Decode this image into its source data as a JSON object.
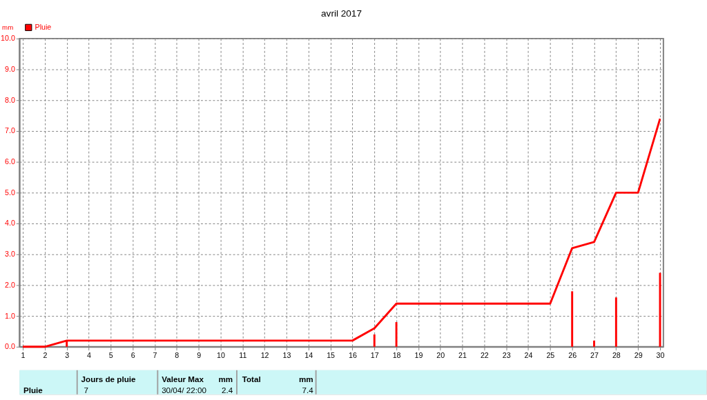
{
  "chart_data": {
    "type": "bar",
    "title": "avril 2017",
    "ylabel": "mm",
    "x": [
      1,
      2,
      3,
      4,
      5,
      6,
      7,
      8,
      9,
      10,
      11,
      12,
      13,
      14,
      15,
      16,
      17,
      18,
      19,
      20,
      21,
      22,
      23,
      24,
      25,
      26,
      27,
      28,
      29,
      30
    ],
    "series": [
      {
        "name": "Pluie",
        "color": "#ff0000",
        "values": [
          null,
          null,
          0.2,
          null,
          null,
          null,
          null,
          null,
          null,
          null,
          null,
          null,
          null,
          null,
          null,
          null,
          0.4,
          0.8,
          null,
          null,
          null,
          null,
          null,
          null,
          null,
          1.8,
          0.2,
          1.6,
          null,
          2.4
        ]
      },
      {
        "type": "line",
        "color": "#ff0000",
        "line_style": "solid",
        "values": [
          0,
          0,
          0.2,
          0.2,
          0.2,
          0.2,
          0.2,
          0.2,
          0.2,
          0.2,
          0.2,
          0.2,
          0.2,
          0.2,
          0.2,
          0.2,
          0.6,
          1.4,
          1.4,
          1.4,
          1.4,
          1.4,
          1.4,
          1.4,
          1.4,
          3.2,
          3.4,
          5.0,
          5.0,
          7.4
        ]
      }
    ],
    "xlim": [
      1,
      30
    ],
    "xticks": [
      1,
      2,
      3,
      4,
      5,
      6,
      7,
      8,
      9,
      10,
      11,
      12,
      13,
      14,
      15,
      16,
      17,
      18,
      19,
      20,
      21,
      22,
      23,
      24,
      25,
      26,
      27,
      28,
      29,
      30
    ],
    "ylim": [
      0,
      10
    ],
    "yticks": [
      {
        "value": 0,
        "label": "0.0"
      },
      {
        "value": 1,
        "label": "1.0"
      },
      {
        "value": 2,
        "label": "2.0"
      },
      {
        "value": 3,
        "label": "3.0"
      },
      {
        "value": 4,
        "label": "4.0"
      },
      {
        "value": 5,
        "label": "5.0"
      },
      {
        "value": 6,
        "label": "6.0"
      },
      {
        "value": 7,
        "label": "7.0"
      },
      {
        "value": 8,
        "label": "8.0"
      },
      {
        "value": 9,
        "label": "9.0"
      },
      {
        "value": 10,
        "label": "10.0"
      }
    ],
    "grid": true,
    "legend": "top left",
    "annotations": [
      "Pluie",
      "Jours de pluie",
      "7",
      "Valeur Max",
      "mm",
      "30/04/  22:00",
      "2.4",
      "Total",
      "mm",
      "7.4"
    ]
  }
}
